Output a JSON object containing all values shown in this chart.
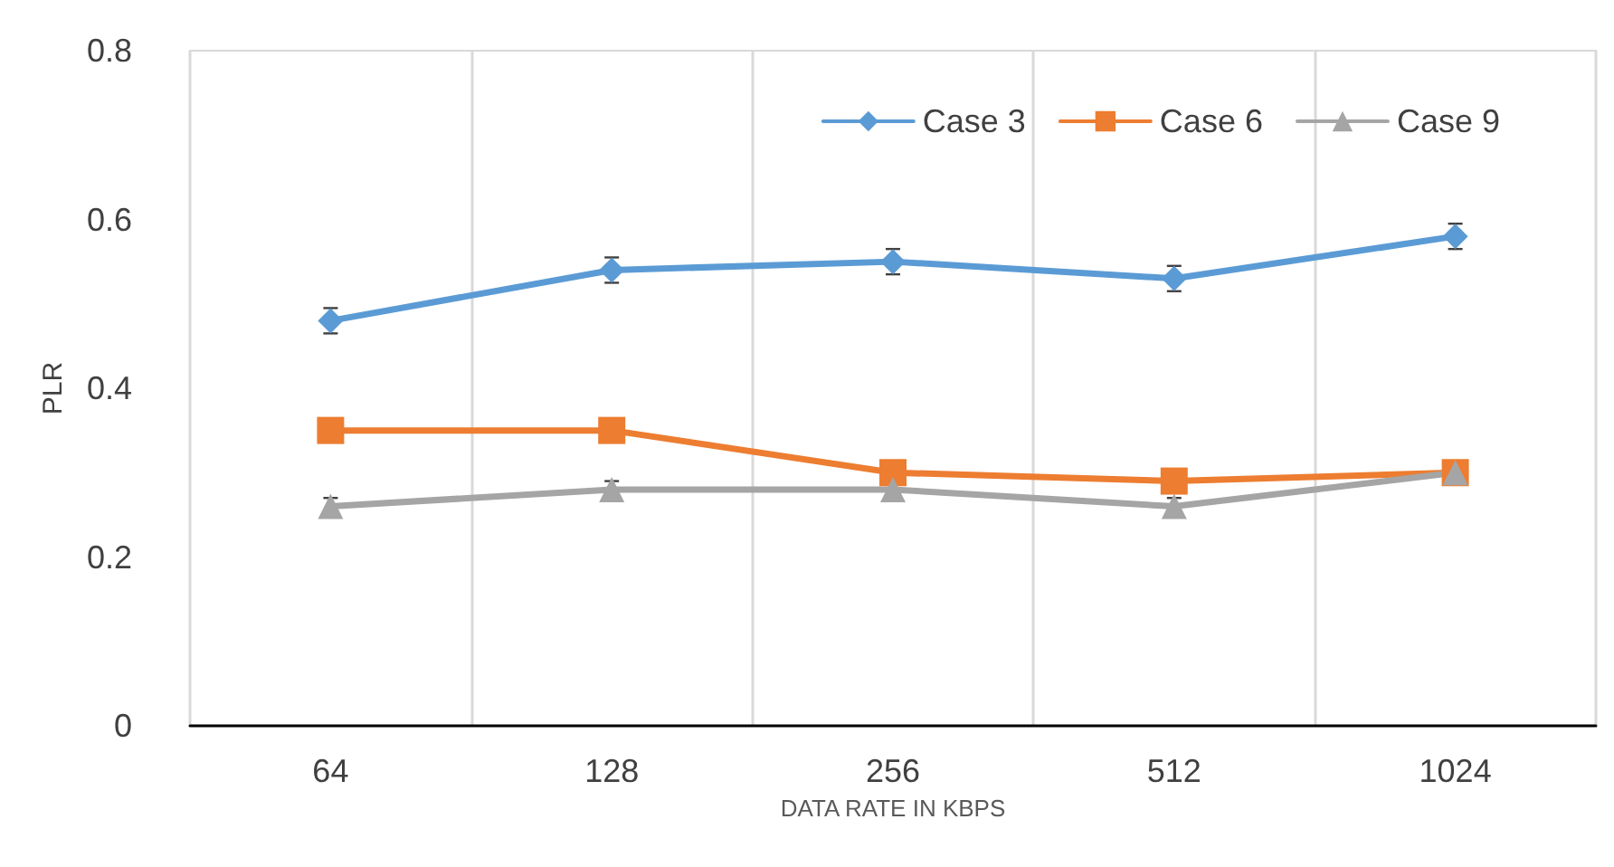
{
  "chart_data": {
    "type": "line",
    "xlabel": "DATA RATE IN KBPS",
    "ylabel": "PLR",
    "categories": [
      "64",
      "128",
      "256",
      "512",
      "1024"
    ],
    "series": [
      {
        "name": "Case 3",
        "color": "#5b9bd5",
        "marker": "diamond",
        "values": [
          0.48,
          0.54,
          0.55,
          0.53,
          0.58
        ],
        "errors": [
          0.015,
          0.015,
          0.015,
          0.015,
          0.015
        ]
      },
      {
        "name": "Case 6",
        "color": "#ed7d31",
        "marker": "square",
        "values": [
          0.35,
          0.35,
          0.3,
          0.29,
          0.3
        ]
      },
      {
        "name": "Case 9",
        "color": "#a5a5a5",
        "marker": "triangle",
        "values": [
          0.26,
          0.28,
          0.28,
          0.26,
          0.3
        ],
        "errors": [
          0.01,
          0.01,
          0.01,
          0.01,
          0.01
        ]
      }
    ],
    "ylim": [
      0,
      0.8
    ],
    "yticks": [
      0,
      0.2,
      0.4,
      0.6,
      0.8
    ],
    "grid": "x",
    "legend": "top right",
    "line_style": "solid"
  }
}
